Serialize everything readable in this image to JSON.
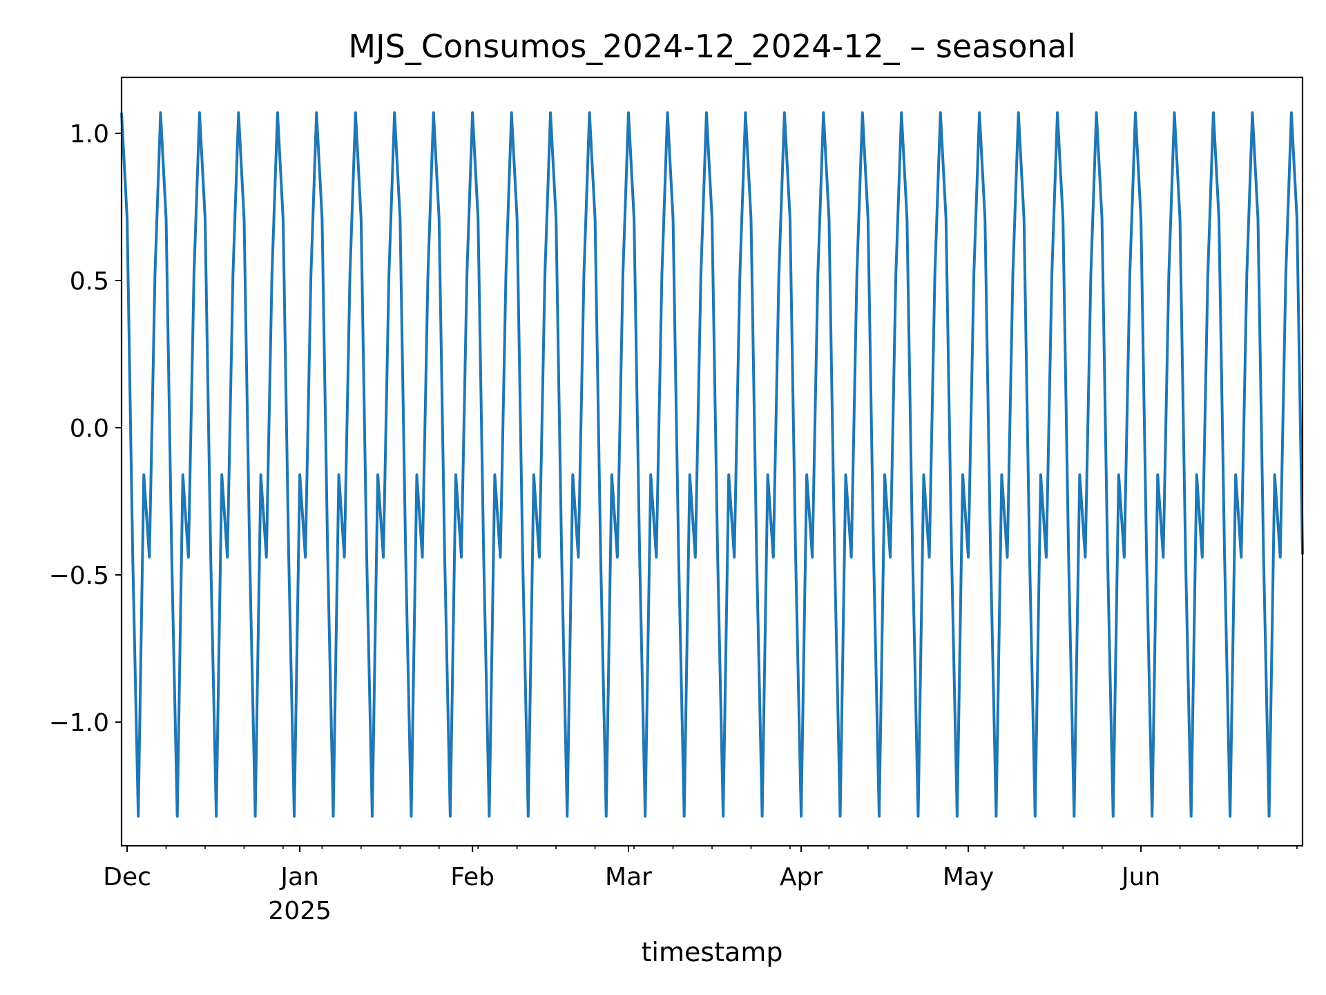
{
  "chart_data": {
    "type": "line",
    "title": "MJS_Consumos_2024-12_2024-12_ – seasonal",
    "xlabel": "timestamp",
    "ylabel": "",
    "x_start": "2024-11-30",
    "x_end": "2025-06-30",
    "ylim": [
      -1.42,
      1.19
    ],
    "grid": false,
    "legend": "none",
    "y_ticks": [
      {
        "value": 1.0,
        "label": "1.0"
      },
      {
        "value": 0.5,
        "label": "0.5"
      },
      {
        "value": 0.0,
        "label": "0.0"
      },
      {
        "value": -0.5,
        "label": "−0.5"
      },
      {
        "value": -1.0,
        "label": "−1.0"
      }
    ],
    "x_ticks": [
      {
        "date": "2024-12-01",
        "label": "Dec",
        "label2": ""
      },
      {
        "date": "2025-01-01",
        "label": "Jan",
        "label2": "2025"
      },
      {
        "date": "2025-02-01",
        "label": "Feb",
        "label2": ""
      },
      {
        "date": "2025-03-01",
        "label": "Mar",
        "label2": ""
      },
      {
        "date": "2025-04-01",
        "label": "Apr",
        "label2": ""
      },
      {
        "date": "2025-05-01",
        "label": "May",
        "label2": ""
      },
      {
        "date": "2025-06-01",
        "label": "Jun",
        "label2": ""
      }
    ],
    "series": [
      {
        "name": "",
        "color": "#1f77b4",
        "weekly_pattern": [
          1.07,
          0.71,
          -0.43,
          -1.32,
          -0.16,
          -0.44,
          0.52
        ],
        "first_date": "2024-11-30",
        "last_date": "2025-06-30"
      }
    ]
  }
}
